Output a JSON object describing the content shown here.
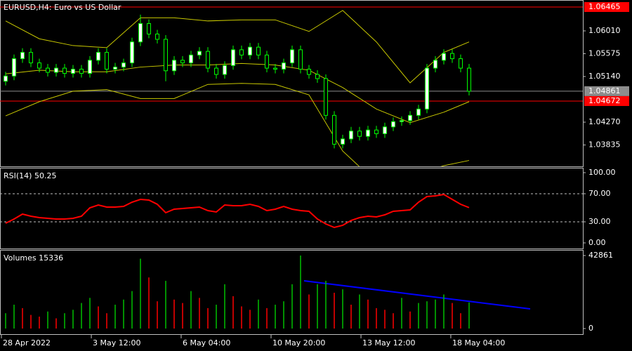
{
  "chart_data": [
    {
      "type": "candlestick",
      "title": "EURUSD,H4:  Euro vs US Dollar",
      "open": [
        1.0505,
        1.0515,
        1.0548,
        1.056,
        1.054,
        1.053,
        1.0522,
        1.053,
        1.052,
        1.0528,
        1.052,
        1.0545,
        1.056,
        1.0528,
        1.0532,
        1.054,
        1.058,
        1.0615,
        1.0595,
        1.0585,
        1.0525,
        1.0545,
        1.054,
        1.0555,
        1.0562,
        1.053,
        1.0518,
        1.0535,
        1.0565,
        1.0555,
        1.057,
        1.0555,
        1.053,
        1.0528,
        1.054,
        1.0565,
        1.0528,
        1.0518,
        1.051,
        1.044,
        1.0385,
        1.0395,
        1.041,
        1.04,
        1.0412,
        1.0405,
        1.0418,
        1.0428,
        1.043,
        1.044,
        1.0452,
        1.053,
        1.0545,
        1.0558,
        1.0548,
        1.053
      ],
      "high": [
        1.0523,
        1.0556,
        1.0568,
        1.0568,
        1.0548,
        1.0538,
        1.0538,
        1.0538,
        1.0536,
        1.0536,
        1.0553,
        1.0568,
        1.0568,
        1.054,
        1.0548,
        1.0588,
        1.0632,
        1.0623,
        1.0603,
        1.0593,
        1.0553,
        1.0553,
        1.0563,
        1.057,
        1.057,
        1.0538,
        1.0543,
        1.0573,
        1.0573,
        1.0578,
        1.0578,
        1.0563,
        1.0538,
        1.0548,
        1.0573,
        1.0573,
        1.0536,
        1.0526,
        1.0518,
        1.0448,
        1.0403,
        1.0418,
        1.0418,
        1.042,
        1.042,
        1.0426,
        1.0436,
        1.0438,
        1.0448,
        1.046,
        1.0538,
        1.0553,
        1.0566,
        1.0566,
        1.0556,
        1.0538
      ],
      "low": [
        1.0497,
        1.0507,
        1.054,
        1.0532,
        1.0522,
        1.0514,
        1.0514,
        1.0512,
        1.0512,
        1.0512,
        1.0512,
        1.0537,
        1.052,
        1.052,
        1.0524,
        1.0532,
        1.0572,
        1.0587,
        1.0577,
        1.0505,
        1.0517,
        1.0532,
        1.0532,
        1.0547,
        1.0522,
        1.051,
        1.051,
        1.0527,
        1.0547,
        1.0547,
        1.0547,
        1.0522,
        1.052,
        1.052,
        1.0532,
        1.052,
        1.051,
        1.0502,
        1.0432,
        1.0377,
        1.0377,
        1.0387,
        1.0392,
        1.0392,
        1.0397,
        1.0397,
        1.041,
        1.042,
        1.0422,
        1.0432,
        1.0444,
        1.0522,
        1.0537,
        1.054,
        1.0522,
        1.0478
      ],
      "close": [
        1.0515,
        1.0548,
        1.056,
        1.054,
        1.053,
        1.0522,
        1.053,
        1.052,
        1.0528,
        1.052,
        1.0545,
        1.056,
        1.0528,
        1.0532,
        1.054,
        1.058,
        1.0615,
        1.0595,
        1.0585,
        1.0525,
        1.0545,
        1.054,
        1.0555,
        1.0562,
        1.053,
        1.0518,
        1.0535,
        1.0565,
        1.0555,
        1.057,
        1.0555,
        1.053,
        1.0528,
        1.054,
        1.0565,
        1.0528,
        1.0518,
        1.051,
        1.044,
        1.0385,
        1.0395,
        1.041,
        1.04,
        1.0412,
        1.0405,
        1.0418,
        1.0428,
        1.043,
        1.044,
        1.0452,
        1.053,
        1.0545,
        1.0558,
        1.0548,
        1.053,
        1.0486
      ],
      "colors": {
        "outline": "#00ff00",
        "up": "#ffffff",
        "down": "#000000"
      },
      "xlim": [
        -0.667,
        68.5
      ],
      "xticks": [
        {
          "value": -0.5,
          "label": "28 Apr 2022"
        },
        {
          "value": 10.17,
          "label": "3 May 12:00"
        },
        {
          "value": 20.83,
          "label": "6 May 04:00"
        },
        {
          "value": 31.5,
          "label": "10 May 20:00"
        },
        {
          "value": 42.17,
          "label": "13 May 12:00"
        },
        {
          "value": 52.83,
          "label": "18 May 04:00"
        }
      ],
      "ylim": [
        1.03427,
        1.06599
      ],
      "yticks": [
        {
          "value": 1.0601,
          "label": "1.06010"
        },
        {
          "value": 1.05575,
          "label": "1.05575"
        },
        {
          "value": 1.0514,
          "label": "1.05140"
        },
        {
          "value": 1.0427,
          "label": "1.04270"
        },
        {
          "value": 1.03835,
          "label": "1.03835"
        }
      ],
      "levels": [
        {
          "value": 1.06465,
          "label": "1.06465",
          "color": "#ff0000"
        },
        {
          "value": 1.04861,
          "label": "1.04861",
          "color": "#8c8c8c"
        },
        {
          "value": 1.04672,
          "label": "1.04672",
          "color": "#ff0000"
        }
      ],
      "bands": {
        "color": "#c8c800",
        "x": [
          0,
          4,
          8,
          12,
          16,
          20,
          24,
          28,
          32,
          36,
          40,
          44,
          48,
          52,
          55
        ],
        "upper": [
          1.062,
          1.0586,
          1.0573,
          1.0569,
          1.0626,
          1.0626,
          1.062,
          1.0622,
          1.0622,
          1.06,
          1.064,
          1.058,
          1.0502,
          1.056,
          1.058
        ],
        "middle": [
          1.0519,
          1.0526,
          1.0523,
          1.0523,
          1.0532,
          1.0536,
          1.0536,
          1.0539,
          1.0536,
          1.0526,
          1.0493,
          1.0452,
          1.0426,
          1.0446,
          1.0466
        ],
        "lower": [
          1.0439,
          1.0466,
          1.0486,
          1.0489,
          1.0472,
          1.0472,
          1.0499,
          1.0501,
          1.0499,
          1.0479,
          1.0372,
          1.0312,
          1.0325,
          1.0344,
          1.0354
        ]
      }
    },
    {
      "type": "line",
      "title": "RSI(14) 50.25",
      "color": "#ff0000",
      "values": [
        28,
        34,
        41,
        38,
        36,
        35,
        34,
        34,
        35,
        38,
        50,
        54,
        51,
        51,
        52,
        58,
        62,
        61,
        55,
        43,
        48,
        49,
        50,
        51,
        46,
        44,
        54,
        53,
        53,
        55,
        52,
        46,
        48,
        52,
        48,
        46,
        45,
        34,
        27,
        22,
        25,
        32,
        36,
        38,
        37,
        40,
        45,
        46,
        47,
        58,
        66,
        67,
        69,
        62,
        55,
        50.25
      ],
      "ylim": [
        0,
        100
      ],
      "yticks": [
        {
          "value": 100,
          "label": "100.00"
        },
        {
          "value": 70,
          "label": "70.00"
        },
        {
          "value": 30,
          "label": "30.00"
        },
        {
          "value": 0,
          "label": "0.00"
        }
      ],
      "levels": [
        70,
        30
      ]
    },
    {
      "type": "bar",
      "title": "Volumes 15336",
      "up_color": "#00c000",
      "down_color": "#ff0000",
      "values": [
        9000,
        14000,
        12000,
        8000,
        7000,
        10000,
        6000,
        9000,
        11000,
        15000,
        18000,
        13000,
        9000,
        14000,
        17000,
        22000,
        41000,
        30000,
        16000,
        28000,
        17000,
        15000,
        22000,
        18000,
        12000,
        14000,
        26000,
        19000,
        13000,
        11000,
        17000,
        12000,
        14000,
        16000,
        26000,
        42861,
        20000,
        26000,
        28000,
        21000,
        23000,
        14000,
        20000,
        17000,
        12000,
        11000,
        9000,
        18000,
        10000,
        15000,
        16000,
        17000,
        20000,
        15000,
        9000,
        15336
      ],
      "ylim": [
        0,
        42861
      ],
      "yticks": [
        0,
        42861
      ]
    }
  ]
}
